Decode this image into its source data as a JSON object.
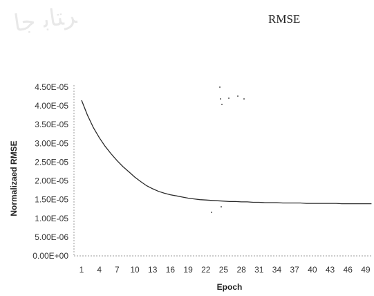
{
  "document": {
    "heading_text": "RMSE"
  },
  "chart_data": {
    "type": "line",
    "title": "",
    "xlabel": "Epoch",
    "ylabel": "Normalizaed RMSE",
    "x_tick_labels": [
      "1",
      "4",
      "7",
      "10",
      "13",
      "16",
      "19",
      "22",
      "25",
      "28",
      "31",
      "34",
      "37",
      "40",
      "43",
      "46",
      "49"
    ],
    "y_tick_labels": [
      "0.00E+00",
      "5.00E-06",
      "1.00E-05",
      "1.50E-05",
      "2.00E-05",
      "2.50E-05",
      "3.00E-05",
      "3.50E-05",
      "4.00E-05",
      "4.50E-05"
    ],
    "ylim": [
      0,
      4.5e-05
    ],
    "xlim": [
      1,
      50
    ],
    "grid": false,
    "legend": "none",
    "series": [
      {
        "color": "#2a2a2a",
        "x": [
          1,
          2,
          3,
          4,
          5,
          6,
          7,
          8,
          9,
          10,
          11,
          12,
          13,
          14,
          15,
          16,
          17,
          18,
          19,
          20,
          21,
          22,
          23,
          24,
          25,
          26,
          27,
          28,
          29,
          30,
          31,
          32,
          33,
          34,
          35,
          36,
          37,
          38,
          39,
          40,
          41,
          42,
          43,
          44,
          45,
          46,
          47,
          48,
          49,
          50
        ],
        "values": [
          4.15e-05,
          3.75e-05,
          3.42e-05,
          3.15e-05,
          2.92e-05,
          2.72e-05,
          2.54e-05,
          2.38e-05,
          2.24e-05,
          2.1e-05,
          1.98e-05,
          1.87e-05,
          1.79e-05,
          1.72e-05,
          1.67e-05,
          1.63e-05,
          1.6e-05,
          1.57e-05,
          1.54e-05,
          1.52e-05,
          1.5e-05,
          1.49e-05,
          1.48e-05,
          1.47e-05,
          1.46e-05,
          1.45e-05,
          1.45e-05,
          1.44e-05,
          1.44e-05,
          1.43e-05,
          1.43e-05,
          1.42e-05,
          1.42e-05,
          1.42e-05,
          1.41e-05,
          1.41e-05,
          1.41e-05,
          1.41e-05,
          1.4e-05,
          1.4e-05,
          1.4e-05,
          1.4e-05,
          1.4e-05,
          1.4e-05,
          1.39e-05,
          1.39e-05,
          1.39e-05,
          1.39e-05,
          1.39e-05,
          1.39e-05
        ]
      }
    ]
  }
}
